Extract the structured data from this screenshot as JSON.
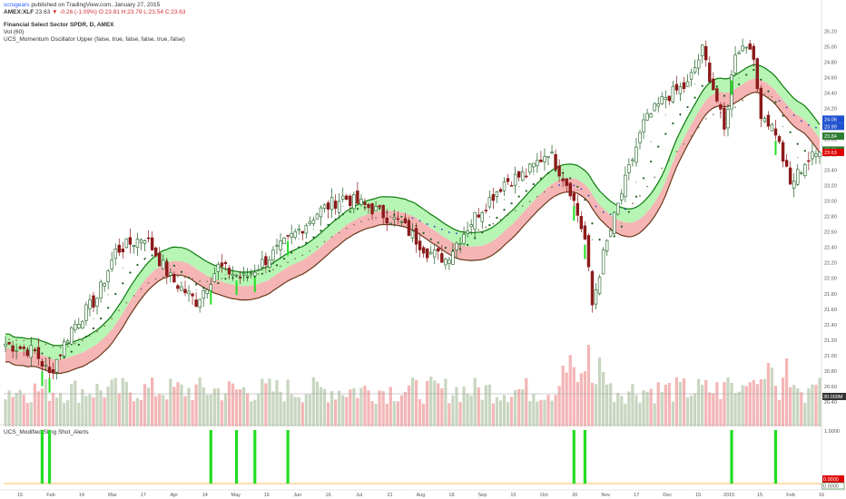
{
  "header": {
    "user": "scrugears",
    "published": " published on TradingView.com, January 27, 2015",
    "symbol": "AMEX:XLF",
    "last": "23.63",
    "change": "▼ -0.26 (-1.09%)",
    "ohlc": "O:23.81 H:23.79 L:23.54 C:23.63",
    "title": "Financial Select Sector SPDR, D, AMEX",
    "vol": "Vol (60)",
    "indicator": "UCS_Momentum Oscillator Upper (false, true, false, false, true, false)",
    "lower_indicator": "UCS_Modified Sling Shot_Alerts"
  },
  "colors": {
    "up_candle": "#1b5e20",
    "down_candle": "#8b1a1a",
    "fast_ema": "#1b5e20",
    "slow_ema": "#3d7a2a",
    "band_up": "#b7f5b5",
    "band_down": "#f5b5b5",
    "alert_bar": "#22dd22",
    "volume_up": "#c8d6c0",
    "volume_down": "#f4b6b6",
    "tag_blue": "#1e50d0",
    "tag_red": "#e00000",
    "tag_green": "#2e7d32"
  },
  "chart_data": [
    {
      "type": "candlestick",
      "title": "Financial Select Sector SPDR, D, AMEX",
      "ylim": [
        20.2,
        25.25
      ],
      "y_ticks": [
        "25.20",
        "25.00",
        "24.80",
        "24.60",
        "24.40",
        "24.20",
        "24.00",
        "23.80",
        "23.60",
        "23.40",
        "23.20",
        "23.00",
        "22.80",
        "22.60",
        "22.40",
        "22.20",
        "22.00",
        "21.80",
        "21.60",
        "21.40",
        "21.20",
        "21.00",
        "20.80",
        "20.60",
        "20.40"
      ],
      "x_ticks": [
        "15",
        "Feb",
        "14",
        "Mar",
        "17",
        "Apr",
        "14",
        "May",
        "19",
        "Jun",
        "16",
        "Jul",
        "21",
        "Aug",
        "18",
        "Sep",
        "15",
        "Oct",
        "20",
        "Nov",
        "17",
        "Dec",
        "15",
        "2015",
        "15",
        "Feb",
        "16"
      ],
      "price_tags": [
        {
          "label": "24.06",
          "value": 24.06,
          "color": "#1e50d0"
        },
        {
          "label": "23.99",
          "value": 23.99,
          "color": "#1e50d0"
        },
        {
          "label": "23.84",
          "value": 23.84,
          "color": "#2e7d32"
        },
        {
          "label": "23.66",
          "value": 23.66,
          "color": "#2e7d32"
        },
        {
          "label": "23.63",
          "value": 23.63,
          "color": "#e00000"
        }
      ],
      "volume_tag": "30.009M",
      "key_points": [
        {
          "x": 0,
          "price": 21.15
        },
        {
          "x": 8,
          "price": 21.05
        },
        {
          "x": 12,
          "price": 20.75
        },
        {
          "x": 18,
          "price": 21.35
        },
        {
          "x": 25,
          "price": 21.75
        },
        {
          "x": 30,
          "price": 22.35
        },
        {
          "x": 38,
          "price": 22.55
        },
        {
          "x": 45,
          "price": 22.0
        },
        {
          "x": 52,
          "price": 21.7
        },
        {
          "x": 58,
          "price": 22.15
        },
        {
          "x": 65,
          "price": 22.0
        },
        {
          "x": 75,
          "price": 22.4
        },
        {
          "x": 85,
          "price": 22.85
        },
        {
          "x": 92,
          "price": 23.05
        },
        {
          "x": 100,
          "price": 22.9
        },
        {
          "x": 108,
          "price": 22.7
        },
        {
          "x": 115,
          "price": 22.35
        },
        {
          "x": 120,
          "price": 22.25
        },
        {
          "x": 128,
          "price": 22.8
        },
        {
          "x": 136,
          "price": 23.25
        },
        {
          "x": 142,
          "price": 23.35
        },
        {
          "x": 148,
          "price": 23.65
        },
        {
          "x": 154,
          "price": 23.15
        },
        {
          "x": 158,
          "price": 22.5
        },
        {
          "x": 160,
          "price": 21.65
        },
        {
          "x": 163,
          "price": 22.3
        },
        {
          "x": 168,
          "price": 23.1
        },
        {
          "x": 174,
          "price": 24.0
        },
        {
          "x": 180,
          "price": 24.35
        },
        {
          "x": 186,
          "price": 24.5
        },
        {
          "x": 190,
          "price": 24.95
        },
        {
          "x": 194,
          "price": 24.3
        },
        {
          "x": 196,
          "price": 23.9
        },
        {
          "x": 199,
          "price": 24.95
        },
        {
          "x": 203,
          "price": 25.05
        },
        {
          "x": 206,
          "price": 24.15
        },
        {
          "x": 210,
          "price": 23.9
        },
        {
          "x": 214,
          "price": 23.2
        },
        {
          "x": 218,
          "price": 23.5
        },
        {
          "x": 222,
          "price": 23.63
        }
      ]
    },
    {
      "type": "bar",
      "title": "UCS_Modified Sling Shot_Alerts",
      "ylim": [
        0,
        1
      ],
      "y_ticks": [
        "1.0000",
        "0.0000"
      ],
      "alert_x": [
        10,
        12,
        56,
        63,
        68,
        77,
        155,
        158,
        198,
        210
      ]
    }
  ]
}
